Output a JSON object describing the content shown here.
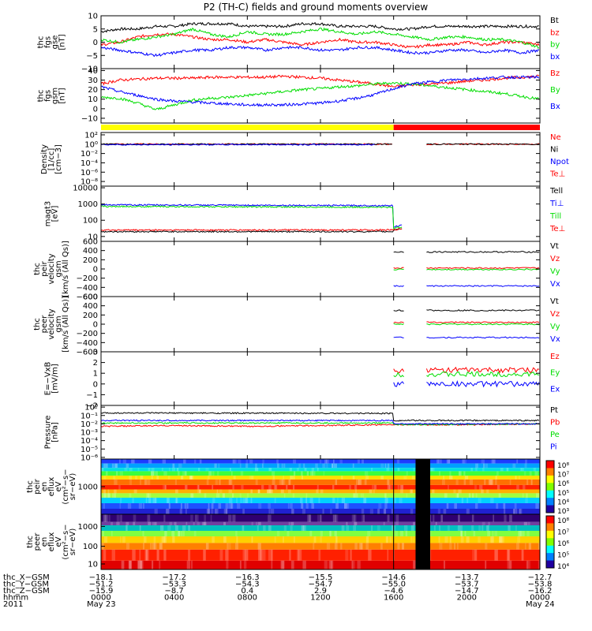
{
  "title": "P2 (TH-C) fields and ground moments overview",
  "colors": {
    "black": "#000000",
    "red": "#ff0000",
    "green": "#00dd00",
    "blue": "#0000ff",
    "yellow": "#ffff00"
  },
  "quality_bar": {
    "segments": [
      {
        "from": 0,
        "to": 16.0,
        "color": "#ffff00"
      },
      {
        "from": 16.0,
        "to": 24,
        "color": "#ff0000"
      }
    ]
  },
  "chart_data": [
    {
      "id": "fgs_gse",
      "type": "line",
      "ylabel": [
        "thc",
        "fgs",
        "gse",
        "[nT]"
      ],
      "ylim": [
        -10,
        10
      ],
      "yticks": [
        10,
        5,
        0,
        -5,
        -10
      ],
      "ytick_labels": [
        "10",
        "5",
        "0",
        "−5",
        "−10"
      ],
      "series": [
        {
          "name": "Bt",
          "color": "#000000",
          "x": [
            0,
            1,
            2,
            3,
            4,
            5,
            6,
            7,
            8,
            9,
            10,
            11,
            12,
            13,
            14,
            15,
            16,
            17,
            18,
            19,
            20,
            21,
            22,
            23,
            24
          ],
          "values": [
            4,
            5,
            5,
            6,
            6,
            7,
            7,
            7,
            6,
            6,
            6,
            7,
            7,
            6,
            6,
            6,
            5,
            5,
            6,
            6,
            6,
            6,
            6,
            6,
            6
          ]
        },
        {
          "name": "bz",
          "color": "#ff0000",
          "x": [
            0,
            1,
            2,
            3,
            4,
            5,
            6,
            7,
            8,
            9,
            10,
            11,
            12,
            13,
            14,
            15,
            16,
            17,
            18,
            19,
            20,
            21,
            22,
            23,
            24
          ],
          "values": [
            -1,
            0,
            2,
            3,
            3,
            2,
            1,
            1,
            0,
            1,
            0,
            -1,
            0,
            1,
            0,
            0,
            -1,
            -2,
            -1,
            -1,
            0,
            -1,
            0,
            0,
            -1
          ]
        },
        {
          "name": "by",
          "color": "#00dd00",
          "x": [
            0,
            1,
            2,
            3,
            4,
            5,
            6,
            7,
            8,
            9,
            10,
            11,
            12,
            13,
            14,
            15,
            16,
            17,
            18,
            19,
            20,
            21,
            22,
            23,
            24
          ],
          "values": [
            1,
            0,
            1,
            2,
            3,
            5,
            3,
            2,
            4,
            3,
            3,
            4,
            5,
            4,
            3,
            4,
            3,
            2,
            1,
            2,
            2,
            1,
            1,
            0,
            -2
          ]
        },
        {
          "name": "bx",
          "color": "#0000ff",
          "x": [
            0,
            1,
            2,
            3,
            4,
            5,
            6,
            7,
            8,
            9,
            10,
            11,
            12,
            13,
            14,
            15,
            16,
            17,
            18,
            19,
            20,
            21,
            22,
            23,
            24
          ],
          "values": [
            -2,
            -3,
            -4,
            -5,
            -4,
            -3,
            -3,
            -2,
            -2,
            -3,
            -2,
            -2,
            -3,
            -3,
            -2,
            -2,
            -3,
            -4,
            -4,
            -3,
            -3,
            -4,
            -3,
            -4,
            -3
          ]
        }
      ]
    },
    {
      "id": "fgs_gsm",
      "type": "line",
      "ylabel": [
        "thc",
        "fgs",
        "gsm",
        "[nT]"
      ],
      "ylim": [
        -15,
        42
      ],
      "yticks": [
        40,
        30,
        20,
        10,
        0,
        -10
      ],
      "ytick_labels": [
        "40",
        "30",
        "20",
        "10",
        "0",
        "−10"
      ],
      "series": [
        {
          "name": "Bz",
          "color": "#ff0000",
          "x": [
            0,
            1,
            2,
            3,
            4,
            5,
            6,
            7,
            8,
            9,
            10,
            11,
            12,
            13,
            14,
            15,
            16,
            17,
            18,
            19,
            20,
            21,
            22,
            23,
            24
          ],
          "values": [
            26,
            30,
            31,
            32,
            32,
            32,
            33,
            33,
            33,
            33,
            34,
            33,
            32,
            30,
            28,
            26,
            23,
            25,
            26,
            27,
            29,
            30,
            32,
            33,
            34
          ]
        },
        {
          "name": "By",
          "color": "#00dd00",
          "x": [
            0,
            1,
            2,
            3,
            4,
            5,
            6,
            7,
            8,
            9,
            10,
            11,
            12,
            13,
            14,
            15,
            16,
            17,
            18,
            19,
            20,
            21,
            22,
            23,
            24
          ],
          "values": [
            12,
            11,
            6,
            -1,
            4,
            9,
            11,
            12,
            14,
            16,
            18,
            20,
            21,
            23,
            24,
            26,
            27,
            26,
            24,
            22,
            20,
            18,
            16,
            13,
            10
          ]
        },
        {
          "name": "Bx",
          "color": "#0000ff",
          "x": [
            0,
            1,
            2,
            3,
            4,
            5,
            6,
            7,
            8,
            9,
            10,
            11,
            12,
            13,
            14,
            15,
            16,
            17,
            18,
            19,
            20,
            21,
            22,
            23,
            24
          ],
          "values": [
            23,
            18,
            14,
            10,
            8,
            7,
            6,
            5,
            4,
            4,
            4,
            5,
            6,
            8,
            11,
            15,
            21,
            26,
            28,
            30,
            31,
            32,
            33,
            33,
            33
          ]
        }
      ]
    },
    {
      "id": "density",
      "type": "line",
      "ylabel": [
        "Density",
        "[1/cc]",
        "[cm−3]"
      ],
      "ylog": true,
      "ylim": [
        -9,
        2.5
      ],
      "yticks": [
        2,
        0,
        -2,
        -4,
        -6,
        -8
      ],
      "ytick_labels": [
        "10²",
        "10⁰",
        "10⁻²",
        "10⁻⁴",
        "10⁻⁶",
        "10⁻⁸"
      ],
      "series": [
        {
          "name": "Ne",
          "color": "#ff0000",
          "segments": [
            [
              0,
              16.0
            ],
            [
              17.8,
              24
            ]
          ],
          "level": 0
        },
        {
          "name": "Ni",
          "color": "#000000",
          "segments": [
            [
              0,
              16.0
            ],
            [
              17.8,
              24
            ]
          ],
          "level": 0
        },
        {
          "name": "Npot",
          "color": "#0000ff",
          "segments": [
            [
              0,
              15.0
            ]
          ],
          "level": -0.1
        }
      ],
      "extra_legend": [
        {
          "name": "Te⊥",
          "color": "#ff0000"
        }
      ]
    },
    {
      "id": "temperature",
      "type": "line",
      "ylabel": [
        "magt3",
        "[eV]"
      ],
      "ylog": true,
      "ylim": [
        0.7,
        4.1
      ],
      "yticks": [
        4,
        3,
        2,
        1
      ],
      "ytick_labels": [
        "10000",
        "1000",
        "100",
        "10"
      ],
      "series": [
        {
          "name": "Tell",
          "color": "#000000",
          "x": [
            0,
            16.0,
            16.0,
            16.5,
            17.8,
            24
          ],
          "values": [
            1.3,
            1.3,
            1.4,
            1.5,
            null,
            1.5
          ]
        },
        {
          "name": "Ti⊥",
          "color": "#0000ff",
          "x": [
            0,
            16.0,
            16.0,
            16.5,
            17.8,
            24
          ],
          "values": [
            2.95,
            2.9,
            1.6,
            1.7,
            null,
            1.6
          ]
        },
        {
          "name": "Till",
          "color": "#00dd00",
          "x": [
            0,
            16.0,
            16.0,
            16.5,
            17.8,
            24
          ],
          "values": [
            2.85,
            2.8,
            1.5,
            1.6,
            null,
            1.5
          ]
        },
        {
          "name": "Te⊥",
          "color": "#ff0000",
          "x": [
            0,
            16.0,
            16.0,
            16.5,
            17.8,
            24
          ],
          "values": [
            1.4,
            1.4,
            1.4,
            1.5,
            null,
            1.45
          ]
        }
      ]
    },
    {
      "id": "peir_velocity",
      "type": "line",
      "ylabel": [
        "thc",
        "peir",
        "velocity",
        "gsm",
        "[km/s (All Qs)]"
      ],
      "ylim": [
        -600,
        600
      ],
      "yticks": [
        600,
        400,
        200,
        0,
        -200,
        -400,
        -600
      ],
      "ytick_labels": [
        "600",
        "400",
        "200",
        "0",
        "−200",
        "−400",
        "−600"
      ],
      "series": [
        {
          "name": "Vt",
          "color": "#000000",
          "segments": [
            [
              16.0,
              16.6
            ],
            [
              17.8,
              24
            ]
          ],
          "level": 370
        },
        {
          "name": "Vz",
          "color": "#ff0000",
          "segments": [
            [
              16.0,
              16.6
            ],
            [
              17.8,
              24
            ]
          ],
          "level": 20
        },
        {
          "name": "Vy",
          "color": "#00dd00",
          "segments": [
            [
              16.0,
              16.6
            ],
            [
              17.8,
              24
            ]
          ],
          "level": -10
        },
        {
          "name": "Vx",
          "color": "#0000ff",
          "segments": [
            [
              16.0,
              16.6
            ],
            [
              17.8,
              24
            ]
          ],
          "level": -370
        }
      ]
    },
    {
      "id": "peer_velocity",
      "type": "line",
      "ylabel": [
        "thc",
        "peer",
        "velocity",
        "gsm",
        "[km/s (All Qs)]"
      ],
      "ylim": [
        -600,
        600
      ],
      "yticks": [
        600,
        400,
        200,
        0,
        -200,
        -400,
        -600
      ],
      "ytick_labels": [
        "600",
        "400",
        "200",
        "0",
        "−200",
        "−400",
        "−600"
      ],
      "series": [
        {
          "name": "Vt",
          "color": "#000000",
          "segments": [
            [
              16.0,
              16.6
            ],
            [
              17.8,
              24
            ]
          ],
          "level": 300
        },
        {
          "name": "Vz",
          "color": "#ff0000",
          "segments": [
            [
              16.0,
              16.6
            ],
            [
              17.8,
              24
            ]
          ],
          "level": 40
        },
        {
          "name": "Vy",
          "color": "#00dd00",
          "segments": [
            [
              16.0,
              16.6
            ],
            [
              17.8,
              24
            ]
          ],
          "level": 0
        },
        {
          "name": "Vx",
          "color": "#0000ff",
          "segments": [
            [
              16.0,
              16.6
            ],
            [
              17.8,
              24
            ]
          ],
          "level": -290
        }
      ]
    },
    {
      "id": "e_field",
      "type": "line",
      "ylabel": [
        "E=−VxB",
        "[mV/m]"
      ],
      "ylim": [
        -2,
        3
      ],
      "yticks": [
        3,
        2,
        1,
        0,
        -1,
        -2
      ],
      "ytick_labels": [
        "3",
        "2",
        "1",
        "0",
        "−1",
        "−2"
      ],
      "series": [
        {
          "name": "Ez",
          "color": "#ff0000",
          "segments": [
            [
              16.0,
              16.6
            ],
            [
              17.8,
              24
            ]
          ],
          "level": 1.3
        },
        {
          "name": "Ey",
          "color": "#00dd00",
          "segments": [
            [
              16.0,
              16.6
            ],
            [
              17.8,
              24
            ]
          ],
          "level": 0.9
        },
        {
          "name": "Ex",
          "color": "#0000ff",
          "segments": [
            [
              16.0,
              16.6
            ],
            [
              17.8,
              24
            ]
          ],
          "level": 0.0
        }
      ]
    },
    {
      "id": "pressure",
      "type": "line",
      "ylabel": [
        "Pressure",
        "[nPa]"
      ],
      "ylog": true,
      "ylim": [
        -6.2,
        0.2
      ],
      "yticks": [
        0,
        -1,
        -2,
        -3,
        -4,
        -5,
        -6
      ],
      "ytick_labels": [
        "10⁰",
        "10⁻¹",
        "10⁻²",
        "10⁻³",
        "10⁻⁴",
        "10⁻⁵",
        "10⁻⁶"
      ],
      "series": [
        {
          "name": "Pt",
          "color": "#000000",
          "x": [
            0,
            16.0,
            16.0,
            24
          ],
          "values": [
            -0.7,
            -0.75,
            -1.6,
            -1.6
          ]
        },
        {
          "name": "Pb",
          "color": "#ff0000",
          "x": [
            0,
            4,
            8,
            12,
            16,
            20,
            24
          ],
          "values": [
            -2.3,
            -2.2,
            -2.3,
            -2.2,
            -2.1,
            -2.1,
            -2.0
          ]
        },
        {
          "name": "Pe",
          "color": "#00dd00",
          "x": [
            0,
            16.0,
            16.0,
            24
          ],
          "values": [
            -1.9,
            -1.9,
            -2.1,
            -2.0
          ]
        },
        {
          "name": "Pi",
          "color": "#0000ff",
          "x": [
            0,
            16.0,
            16.0,
            24
          ],
          "values": [
            -1.6,
            -1.6,
            -2.0,
            -2.0
          ]
        }
      ]
    },
    {
      "id": "peir_spec",
      "type": "heatmap",
      "ylabel": [
        "thc",
        "peir",
        "en",
        "eflux",
        "eV",
        "(cm²−s−",
        "sr−eV)"
      ],
      "ytick_labels": [
        "1000"
      ],
      "colorbar_labels": [
        "10⁸",
        "10⁷",
        "10⁶",
        "10⁵",
        "10⁴",
        "10³"
      ],
      "gap": [
        17.2,
        18.0
      ]
    },
    {
      "id": "peer_spec",
      "type": "heatmap",
      "ylabel": [
        "thc",
        "peer",
        "en",
        "eflux",
        "eV",
        "(cm²−s−",
        "sr−eV)"
      ],
      "ytick_labels": [
        "1000",
        "100",
        "10"
      ],
      "colorbar_labels": [
        "10⁸",
        "10⁷",
        "10⁶",
        "10⁵",
        "10⁴"
      ],
      "gap": [
        17.2,
        18.0
      ]
    }
  ],
  "footer": {
    "row_labels": [
      "thc_X−GSM",
      "thc_Y−GSM",
      "thc_Z−GSM",
      "hhmm",
      "2011"
    ],
    "columns": [
      {
        "values": [
          "−18.1",
          "−51.2",
          "−15.9",
          "0000",
          "May 23"
        ]
      },
      {
        "values": [
          "−17.2",
          "−53.3",
          "−8.7",
          "0400",
          ""
        ]
      },
      {
        "values": [
          "−16.3",
          "−54.3",
          "0.4",
          "0800",
          ""
        ]
      },
      {
        "values": [
          "−15.5",
          "−54.7",
          "2.9",
          "1200",
          ""
        ]
      },
      {
        "values": [
          "−14.6",
          "−55.0",
          "−4.6",
          "1600",
          ""
        ]
      },
      {
        "values": [
          "−13.7",
          "−53.7",
          "−14.7",
          "2000",
          ""
        ]
      },
      {
        "values": [
          "−12.7",
          "−53.8",
          "−16.2",
          "0000",
          "May 24"
        ]
      }
    ]
  }
}
